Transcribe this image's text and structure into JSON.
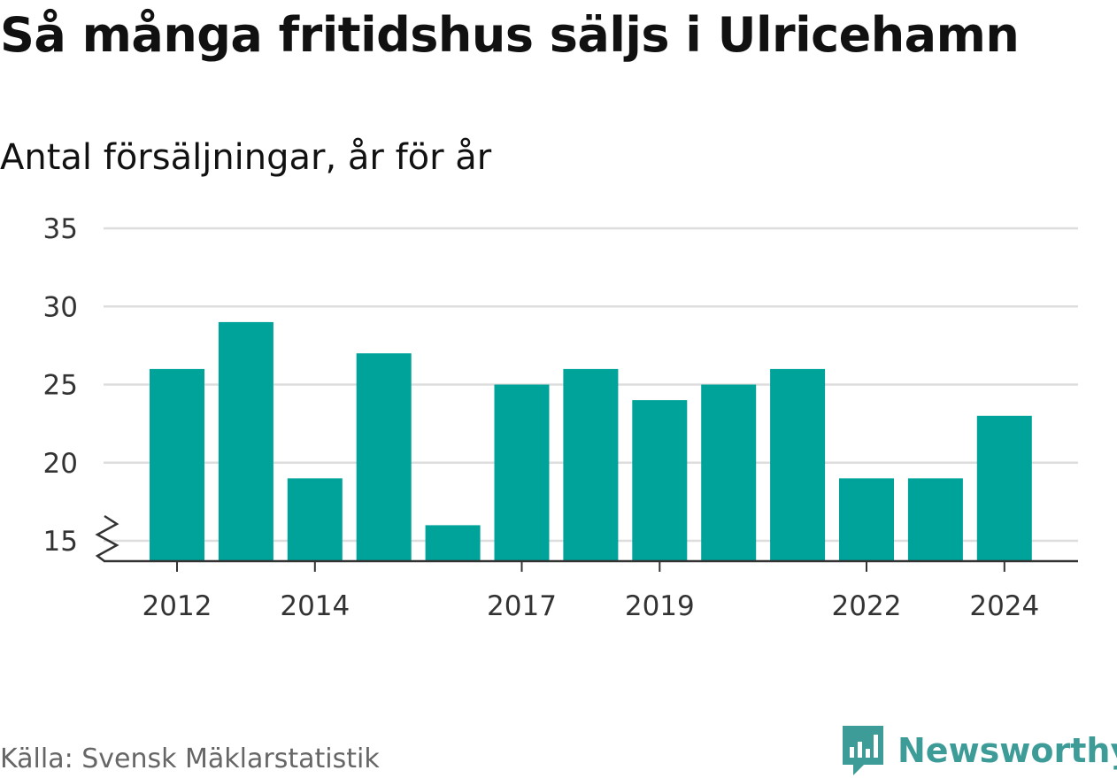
{
  "title": "Så många fritidshus säljs i Ulricehamn",
  "subtitle": "Antal försäljningar, år för år",
  "source": "Källa: Svensk Mäklarstatistik",
  "logo": {
    "text": "Newsworthy",
    "icon": "bar-chart-speech-bubble-icon"
  },
  "colors": {
    "bar": "#00a39a",
    "grid": "#dddddd",
    "axis": "#333333",
    "logo": "#3d9c97"
  },
  "chart_data": {
    "type": "bar",
    "categories": [
      "2012",
      "2013",
      "2014",
      "2015",
      "2016",
      "2017",
      "2018",
      "2019",
      "2020",
      "2021",
      "2022",
      "2023",
      "2024"
    ],
    "values": [
      26,
      29,
      19,
      27,
      16,
      25,
      26,
      24,
      25,
      26,
      19,
      19,
      23
    ],
    "x_tick_labels": [
      "2012",
      "2014",
      "2017",
      "2019",
      "2022",
      "2024"
    ],
    "y_ticks": [
      15,
      20,
      25,
      30,
      35
    ],
    "ylim": [
      13.5,
      35
    ],
    "y_axis_break": true,
    "grid": true,
    "title": "Så många fritidshus säljs i Ulricehamn",
    "xlabel": "",
    "ylabel": ""
  }
}
